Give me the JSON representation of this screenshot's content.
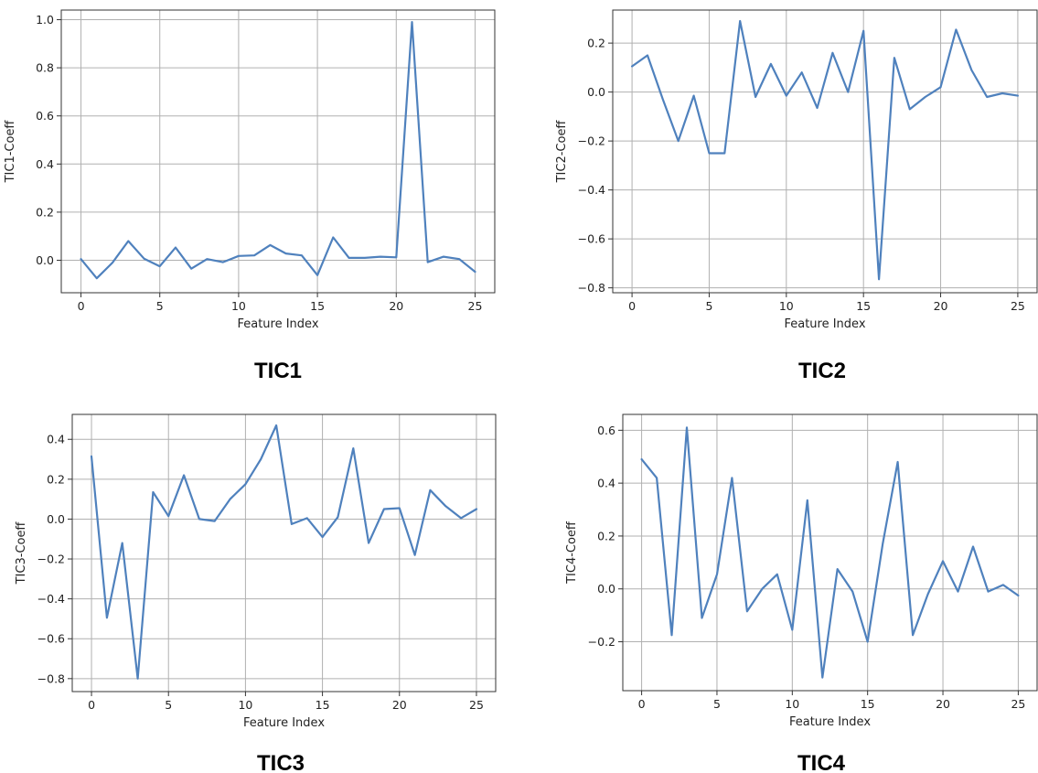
{
  "colors": {
    "line": "#4f81bd"
  },
  "chart_data": [
    {
      "type": "line",
      "title": "TIC1",
      "xlabel": "Feature Index",
      "ylabel": "TIC1-Coeff",
      "xlim": [
        -1.25,
        26.25
      ],
      "ylim": [
        -0.135,
        1.04
      ],
      "xticks": [
        0,
        5,
        10,
        15,
        20,
        25
      ],
      "yticks": [
        0.0,
        0.2,
        0.4,
        0.6,
        0.8,
        1.0
      ],
      "ytick_labels": [
        "0.0",
        "0.2",
        "0.4",
        "0.6",
        "0.8",
        "1.0"
      ],
      "grid": true,
      "x": [
        0,
        1,
        2,
        3,
        4,
        5,
        6,
        7,
        8,
        9,
        10,
        11,
        12,
        13,
        14,
        15,
        16,
        17,
        18,
        19,
        20,
        21,
        22,
        23,
        24,
        25
      ],
      "series": [
        {
          "values": [
            0.005,
            -0.075,
            -0.01,
            0.08,
            0.007,
            -0.025,
            0.053,
            -0.035,
            0.005,
            -0.008,
            0.018,
            0.02,
            0.063,
            0.028,
            0.02,
            -0.062,
            0.095,
            0.01,
            0.01,
            0.015,
            0.012,
            0.99,
            -0.008,
            0.015,
            0.005,
            -0.048
          ]
        }
      ]
    },
    {
      "type": "line",
      "title": "TIC2",
      "xlabel": "Feature Index",
      "ylabel": "TIC2-Coeff",
      "xlim": [
        -1.25,
        26.25
      ],
      "ylim": [
        -0.82,
        0.335
      ],
      "xticks": [
        0,
        5,
        10,
        15,
        20,
        25
      ],
      "yticks": [
        -0.8,
        -0.6,
        -0.4,
        -0.2,
        0.0,
        0.2
      ],
      "ytick_labels": [
        "−0.8",
        "−0.6",
        "−0.4",
        "−0.2",
        "0.0",
        "0.2"
      ],
      "grid": true,
      "x": [
        0,
        1,
        2,
        3,
        4,
        5,
        6,
        7,
        8,
        9,
        10,
        11,
        12,
        13,
        14,
        15,
        16,
        17,
        18,
        19,
        20,
        21,
        22,
        23,
        24,
        25
      ],
      "series": [
        {
          "values": [
            0.105,
            0.15,
            -0.03,
            -0.2,
            -0.015,
            -0.25,
            -0.25,
            0.29,
            -0.02,
            0.115,
            -0.015,
            0.08,
            -0.065,
            0.16,
            0.0,
            0.25,
            -0.765,
            0.14,
            -0.07,
            -0.02,
            0.02,
            0.255,
            0.09,
            -0.02,
            -0.005,
            -0.015
          ]
        }
      ]
    },
    {
      "type": "line",
      "title": "TIC3",
      "xlabel": "Feature Index",
      "ylabel": "TIC3-Coeff",
      "xlim": [
        -1.25,
        26.25
      ],
      "ylim": [
        -0.865,
        0.525
      ],
      "xticks": [
        0,
        5,
        10,
        15,
        20,
        25
      ],
      "yticks": [
        -0.8,
        -0.6,
        -0.4,
        -0.2,
        0.0,
        0.2,
        0.4
      ],
      "ytick_labels": [
        "−0.8",
        "−0.6",
        "−0.4",
        "−0.2",
        "0.0",
        "0.2",
        "0.4"
      ],
      "grid": true,
      "x": [
        0,
        1,
        2,
        3,
        4,
        5,
        6,
        7,
        8,
        9,
        10,
        11,
        12,
        13,
        14,
        15,
        16,
        17,
        18,
        19,
        20,
        21,
        22,
        23,
        24,
        25
      ],
      "series": [
        {
          "values": [
            0.315,
            -0.495,
            -0.12,
            -0.8,
            0.135,
            0.015,
            0.22,
            0.0,
            -0.01,
            0.1,
            0.175,
            0.3,
            0.47,
            -0.025,
            0.005,
            -0.09,
            0.01,
            0.355,
            -0.12,
            0.05,
            0.055,
            -0.18,
            0.145,
            0.065,
            0.005,
            0.05
          ]
        }
      ]
    },
    {
      "type": "line",
      "title": "TIC4",
      "xlabel": "Feature Index",
      "ylabel": "TIC4-Coeff",
      "xlim": [
        -1.25,
        26.25
      ],
      "ylim": [
        -0.385,
        0.66
      ],
      "xticks": [
        0,
        5,
        10,
        15,
        20,
        25
      ],
      "yticks": [
        -0.2,
        0.0,
        0.2,
        0.4,
        0.6
      ],
      "ytick_labels": [
        "−0.2",
        "0.0",
        "0.2",
        "0.4",
        "0.6"
      ],
      "grid": true,
      "x": [
        0,
        1,
        2,
        3,
        4,
        5,
        6,
        7,
        8,
        9,
        10,
        11,
        12,
        13,
        14,
        15,
        16,
        17,
        18,
        19,
        20,
        21,
        22,
        23,
        24,
        25
      ],
      "series": [
        {
          "values": [
            0.49,
            0.42,
            -0.175,
            0.61,
            -0.11,
            0.055,
            0.42,
            -0.085,
            0.0,
            0.055,
            -0.155,
            0.335,
            -0.335,
            0.075,
            -0.01,
            -0.2,
            0.17,
            0.48,
            -0.175,
            -0.02,
            0.105,
            -0.01,
            0.16,
            -0.01,
            0.015,
            -0.025
          ]
        }
      ]
    }
  ]
}
